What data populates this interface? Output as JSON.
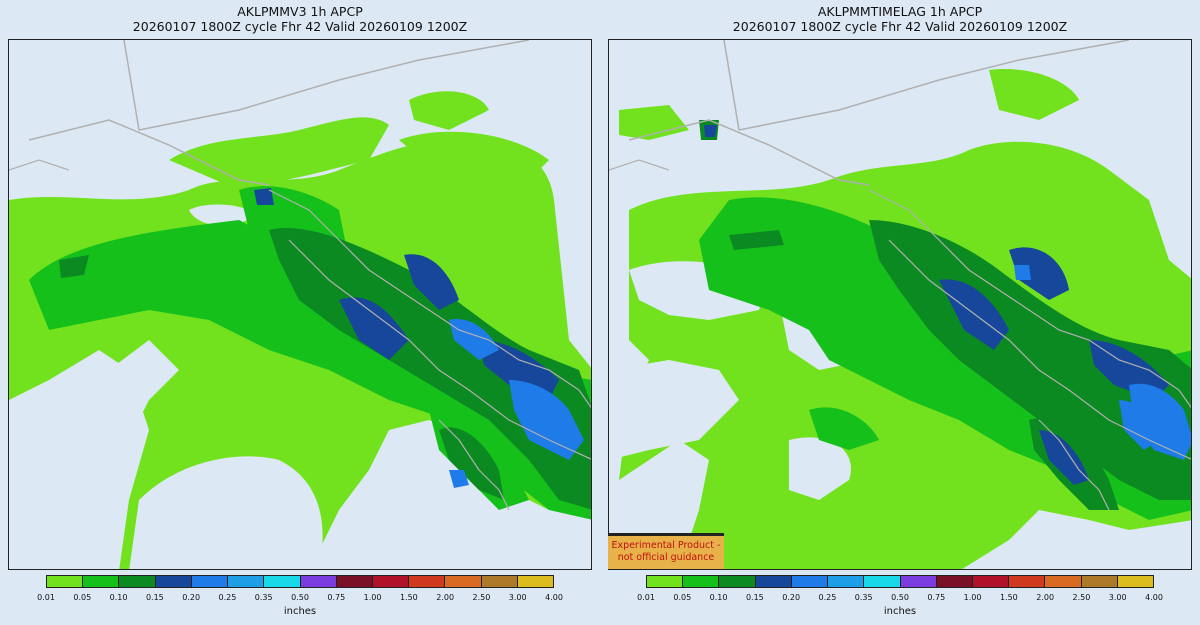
{
  "left_panel": {
    "title_line1": "AKLPMMV3 1h APCP",
    "title_line2": "20260107 1800Z cycle Fhr 42 Valid 20260109 1200Z"
  },
  "right_panel": {
    "title_line1": "AKLPMMTIMELAG 1h APCP",
    "title_line2": "20260107 1800Z cycle Fhr 42 Valid 20260109 1200Z"
  },
  "colorbar": {
    "unit_label": "inches",
    "ticks": [
      "0.01",
      "0.05",
      "0.10",
      "0.15",
      "0.20",
      "0.25",
      "0.35",
      "0.50",
      "0.75",
      "1.00",
      "1.50",
      "2.00",
      "2.50",
      "3.00",
      "4.00"
    ],
    "colors": [
      "#72e21f",
      "#16c01a",
      "#0c8a22",
      "#17479a",
      "#1e7be8",
      "#1f9ee8",
      "#19d8e8",
      "#7b3de0",
      "#7a1028",
      "#b0122a",
      "#cf3a1e",
      "#d86a22",
      "#ad7a2a",
      "#dcbd20"
    ]
  },
  "badge": {
    "line1": "Experimental Product -",
    "line2": "not official guidance"
  },
  "colors": {
    "background": "#dde8f5",
    "border_lines": "#b0b0b0"
  }
}
